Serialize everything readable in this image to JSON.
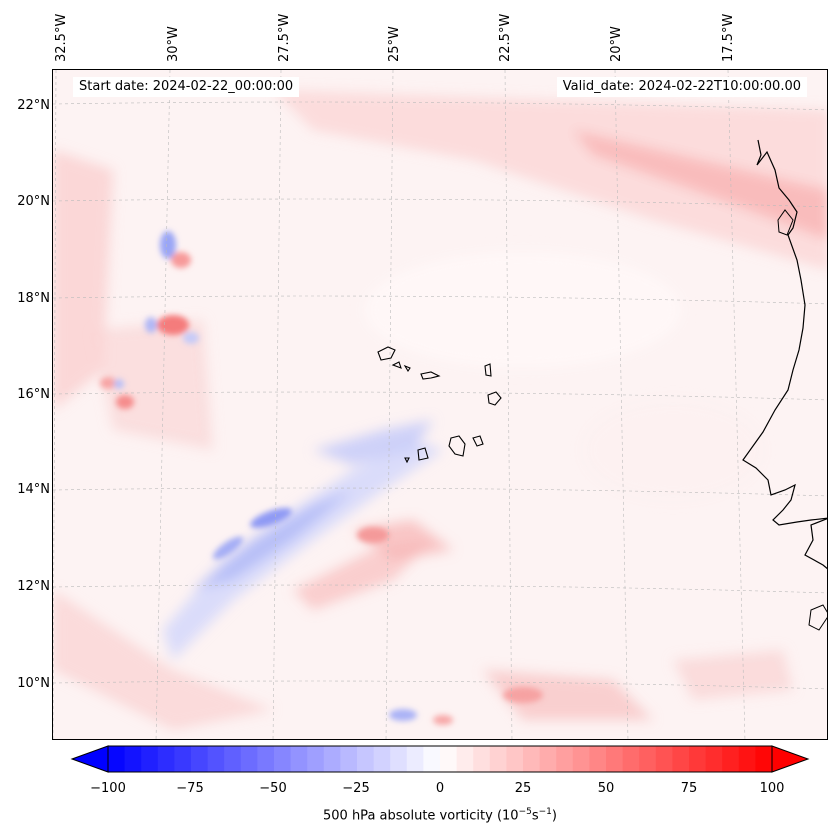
{
  "header": {
    "start_date": "Start date: 2024-02-22_00:00:00",
    "valid_date": "Valid_date: 2024-02-22T10:00:00.00"
  },
  "longitude_labels": [
    "32.5°W",
    "30°W",
    "27.5°W",
    "25°W",
    "22.5°W",
    "20°W",
    "17.5°W"
  ],
  "latitude_labels": [
    "22°N",
    "20°N",
    "18°N",
    "16°N",
    "14°N",
    "12°N",
    "10°N"
  ],
  "colorbar": {
    "label_prefix": "500 hPa absolute vorticity (10",
    "label_exp1": "−5",
    "label_mid": "s",
    "label_exp2": "−1",
    "label_suffix": ")",
    "ticks": [
      "−100",
      "−75",
      "−50",
      "−25",
      "0",
      "25",
      "50",
      "75",
      "100"
    ],
    "min": -100,
    "max": 100,
    "min_color": "#0000ff",
    "mid_color": "#ffffff",
    "max_color": "#ff0000"
  },
  "map": {
    "field": "500 hPa absolute vorticity",
    "extent": {
      "lon_min": -33,
      "lon_max": -15,
      "lat_min": 9,
      "lat_max": 22.7
    },
    "coastline_color": "#000000",
    "grid_color": "#bbbbbb"
  }
}
